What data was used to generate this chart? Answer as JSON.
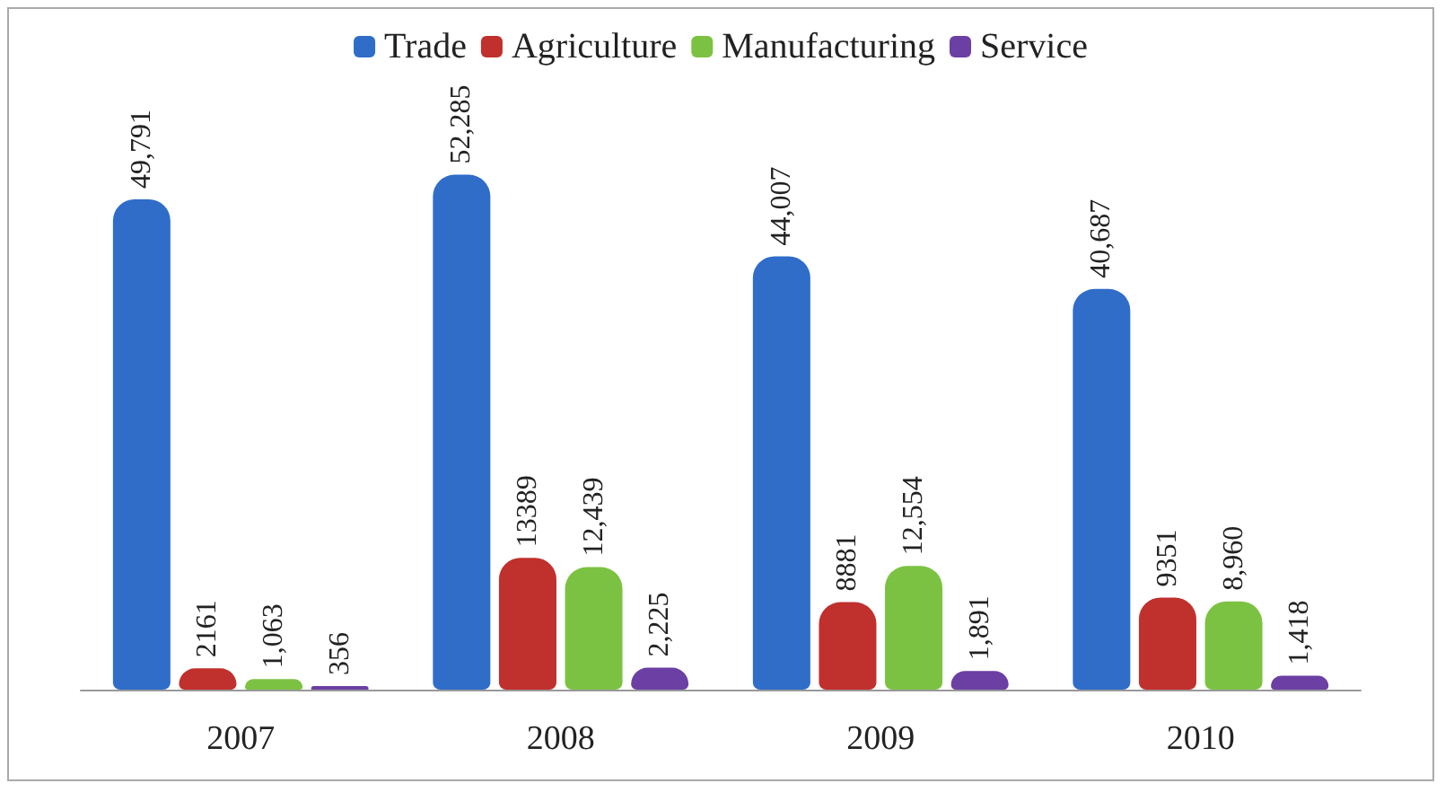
{
  "chart_data": {
    "type": "bar",
    "categories": [
      "2007",
      "2008",
      "2009",
      "2010"
    ],
    "series": [
      {
        "name": "Trade",
        "color": "#2f6dc8",
        "values": [
          49791,
          52285,
          44007,
          40687
        ],
        "value_labels": [
          "49,791",
          "52,285",
          "44,007",
          "40,687"
        ]
      },
      {
        "name": "Agriculture",
        "color": "#c0302c",
        "values": [
          2161,
          13389,
          8881,
          9351
        ],
        "value_labels": [
          "2161",
          "13389",
          "8881",
          "9351"
        ]
      },
      {
        "name": "Manufacturing",
        "color": "#7cc242",
        "values": [
          1063,
          12439,
          12554,
          8960
        ],
        "value_labels": [
          "1,063",
          "12,439",
          "12,554",
          "8,960"
        ]
      },
      {
        "name": "Service",
        "color": "#6b3fa3",
        "values": [
          356,
          2225,
          1891,
          1418
        ],
        "value_labels": [
          "356",
          "2,225",
          "1,891",
          "1,418"
        ]
      }
    ],
    "legend": "top"
  }
}
